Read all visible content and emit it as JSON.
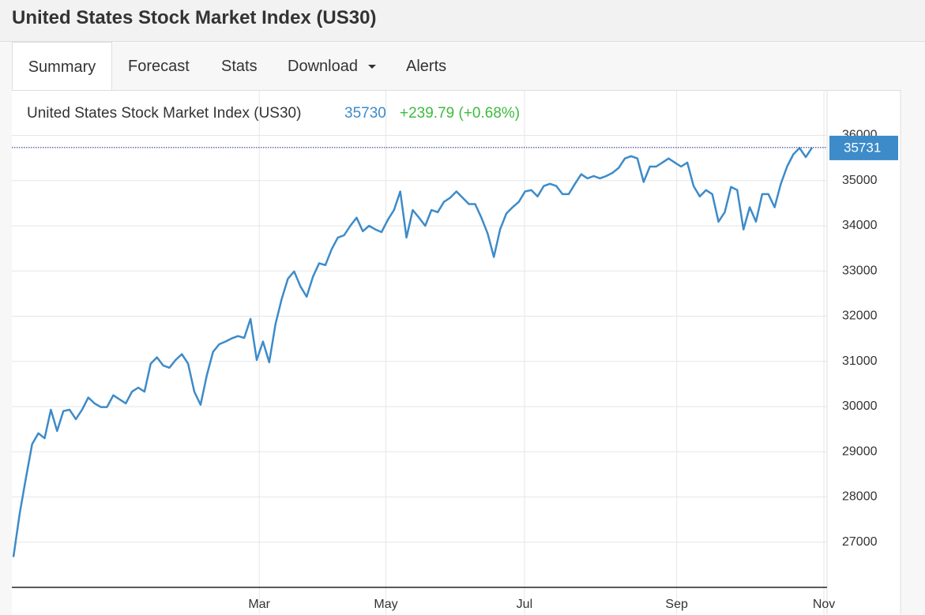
{
  "header": {
    "title": "United States Stock Market Index (US30)"
  },
  "tabs": [
    "Summary",
    "Forecast",
    "Stats",
    "Download",
    "Alerts"
  ],
  "quote": {
    "name": "United States Stock Market Index (US30)",
    "price": "35730",
    "change": "+239.79 (+0.68%)"
  },
  "chart_data": {
    "type": "line",
    "series": [
      {
        "color": "#3d8bc9",
        "values": [
          26670,
          27630,
          28420,
          29170,
          29410,
          29300,
          29930,
          29460,
          29900,
          29930,
          29720,
          29930,
          30200,
          30070,
          29990,
          29990,
          30250,
          30160,
          30070,
          30330,
          30420,
          30330,
          30950,
          31090,
          30910,
          30860,
          31030,
          31160,
          30950,
          30330,
          30040,
          30690,
          31210,
          31380,
          31440,
          31510,
          31560,
          31520,
          31940,
          31030,
          31440,
          30980,
          31820,
          32380,
          32830,
          32990,
          32660,
          32430,
          32870,
          33170,
          33130,
          33480,
          33740,
          33790,
          34000,
          34180,
          33880,
          34000,
          33920,
          33860,
          34130,
          34350,
          34760,
          33740,
          34350,
          34180,
          34000,
          34350,
          34300,
          34530,
          34620,
          34760,
          34620,
          34480,
          34480,
          34180,
          33830,
          33310,
          33920,
          34270,
          34410,
          34530,
          34760,
          34790,
          34650,
          34880,
          34930,
          34880,
          34700,
          34700,
          34930,
          35140,
          35050,
          35100,
          35050,
          35100,
          35170,
          35280,
          35490,
          35540,
          35490,
          34970,
          35310,
          35310,
          35400,
          35490,
          35400,
          35310,
          35400,
          34880,
          34650,
          34790,
          34700,
          34090,
          34300,
          34860,
          34790,
          33920,
          34410,
          34090,
          34700,
          34700,
          34410,
          34930,
          35310,
          35580,
          35720,
          35520,
          35731
        ]
      }
    ],
    "xlim": [
      -0.25,
      130.4
    ],
    "xticks": [
      {
        "value": 39.4,
        "label": "Mar"
      },
      {
        "value": 59.7,
        "label": "May"
      },
      {
        "value": 81.9,
        "label": "Jul"
      },
      {
        "value": 106.3,
        "label": "Sep"
      },
      {
        "value": 129.9,
        "label": "Nov"
      }
    ],
    "ylim": [
      26000,
      37000
    ],
    "yticks": [
      27000,
      28000,
      29000,
      30000,
      31000,
      32000,
      33000,
      34000,
      35000,
      36000
    ],
    "grid": true
  }
}
